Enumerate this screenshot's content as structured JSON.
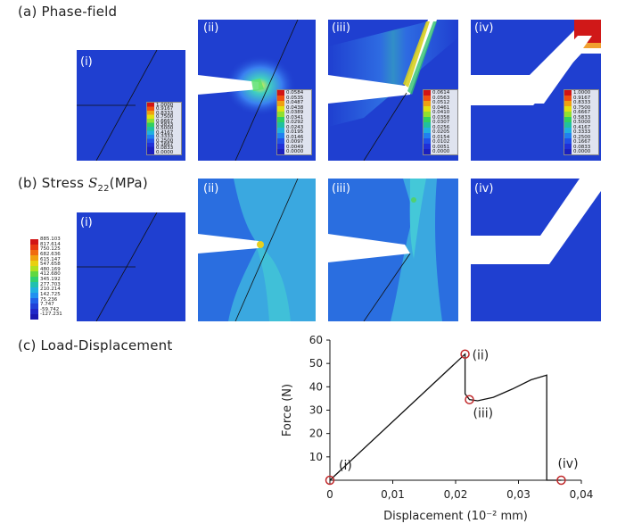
{
  "sections": {
    "a": "(a) Phase-field",
    "b_prefix": "(b) Stress ",
    "b_symbol": "S",
    "b_sub": "22",
    "b_suffix": "(MPa)",
    "c": "(c) Load-Displacement"
  },
  "panel_labels": [
    "(i)",
    "(ii)",
    "(iii)",
    "(iv)"
  ],
  "colors": {
    "field_blue": "#1f3fd0",
    "field_light_blue": "#3f7ff0",
    "field_cyan": "#44c8e0",
    "crack_red": "#d01818",
    "marker": "#c0282a",
    "line": "#111111"
  },
  "phase_legends": [
    [
      "1.0000",
      "0.9167",
      "0.8333",
      "0.7500",
      "0.6667",
      "0.5833",
      "0.5000",
      "0.4167",
      "0.3333",
      "0.2500",
      "0.1667",
      "0.0833",
      "0.0000"
    ],
    [
      "0.0584",
      "0.0535",
      "0.0487",
      "0.0438",
      "0.0389",
      "0.0341",
      "0.0292",
      "0.0243",
      "0.0195",
      "0.0146",
      "0.0097",
      "0.0049",
      "0.0000"
    ],
    [
      "0.0614",
      "0.0563",
      "0.0512",
      "0.0461",
      "0.0410",
      "0.0358",
      "0.0307",
      "0.0256",
      "0.0205",
      "0.0154",
      "0.0102",
      "0.0051",
      "0.0000"
    ],
    [
      "1.0000",
      "0.9167",
      "0.8333",
      "0.7500",
      "0.6667",
      "0.5833",
      "0.5000",
      "0.4167",
      "0.3333",
      "0.2500",
      "0.1667",
      "0.0833",
      "0.0000"
    ]
  ],
  "stress_legend": [
    "885.103",
    "817.614",
    "750.125",
    "682.636",
    "615.147",
    "547.658",
    "480.169",
    "412.680",
    "345.192",
    "277.703",
    "210.214",
    "142.725",
    "75.236",
    "7.747",
    "-59.742",
    "-127.231"
  ],
  "chart_data": {
    "type": "line",
    "title": "",
    "xlabel": "Displacement (10⁻² mm)",
    "ylabel": "Force (N)",
    "xlim": [
      0,
      0.04
    ],
    "ylim": [
      0,
      60
    ],
    "xticks": [
      "0",
      "0,01",
      "0,02",
      "0,03",
      "0,04"
    ],
    "xtick_values": [
      0,
      0.01,
      0.02,
      0.03,
      0.04
    ],
    "yticks": [
      "10",
      "20",
      "30",
      "40",
      "50",
      "60"
    ],
    "ytick_values": [
      10,
      20,
      30,
      40,
      50,
      60
    ],
    "series": [
      {
        "x": [
          0,
          0.0215,
          0.0215,
          0.0222,
          0.0235,
          0.026,
          0.029,
          0.032,
          0.0345,
          0.0345,
          0.0368
        ],
        "y": [
          0,
          54,
          37,
          34.5,
          34,
          35.5,
          39,
          43,
          45,
          0,
          0
        ]
      }
    ],
    "points": [
      {
        "label": "(i)",
        "x": 0,
        "y": 0
      },
      {
        "label": "(ii)",
        "x": 0.0215,
        "y": 54
      },
      {
        "label": "(iii)",
        "x": 0.0222,
        "y": 34.5
      },
      {
        "label": "(iv)",
        "x": 0.0368,
        "y": 0
      }
    ],
    "grid": false
  }
}
